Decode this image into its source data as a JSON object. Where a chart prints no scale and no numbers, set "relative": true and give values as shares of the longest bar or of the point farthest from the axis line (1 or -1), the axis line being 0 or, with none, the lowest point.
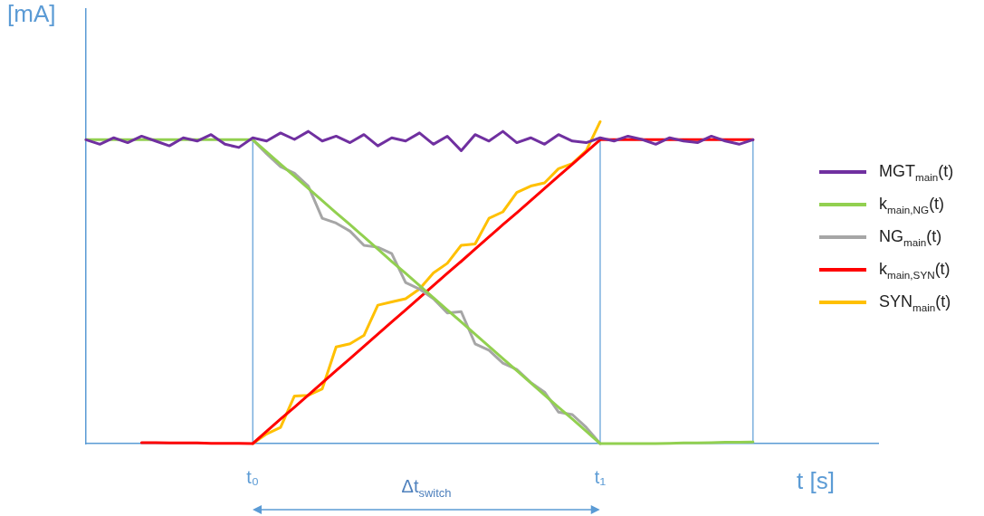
{
  "chart_data": {
    "type": "line",
    "relative": true,
    "xlabel": "t [s]",
    "ylabel": "[mA]",
    "categories": [
      null,
      null,
      null,
      null,
      null,
      null,
      null,
      null,
      null,
      null,
      null,
      null,
      "t₀",
      null,
      null,
      null,
      null,
      null,
      null,
      null,
      null,
      null,
      null,
      null,
      null,
      null,
      null,
      null,
      null,
      null,
      null,
      null,
      null,
      null,
      null,
      null,
      null,
      "t₁",
      null,
      null,
      null,
      null,
      null,
      null,
      null,
      null,
      null,
      null,
      null,
      null,
      null,
      null,
      null,
      null,
      null,
      null,
      null,
      null
    ],
    "legend": "right",
    "grid": "x",
    "marker": "none",
    "line_style": "solid",
    "annotations": [
      "Δt$_{switch}$"
    ],
    "series": [
      {
        "name": "MGT$_{main}$(t)",
        "color": "#7030a0",
        "values": [
          0.944,
          0.93,
          0.95,
          0.935,
          0.955,
          0.94,
          0.925,
          0.95,
          0.94,
          0.96,
          0.93,
          0.92,
          0.95,
          0.94,
          0.965,
          0.945,
          0.97,
          0.94,
          0.955,
          0.935,
          0.96,
          0.925,
          0.95,
          0.94,
          0.965,
          0.93,
          0.955,
          0.91,
          0.96,
          0.94,
          0.97,
          0.935,
          0.95,
          0.93,
          0.96,
          0.94,
          0.935,
          0.95,
          0.94,
          0.955,
          0.945,
          0.93,
          0.95,
          0.94,
          0.935,
          0.955,
          0.94,
          0.93,
          0.944,
          null,
          null,
          null,
          null,
          null,
          null,
          null,
          null,
          null
        ]
      },
      {
        "name": "k$_{main,NG}$(t)",
        "color": "#92d050",
        "values": [
          0.944,
          0.944,
          0.944,
          0.944,
          0.944,
          0.944,
          0.944,
          0.944,
          0.944,
          0.944,
          0.944,
          0.944,
          0.944,
          0.906,
          0.868,
          0.831,
          0.793,
          0.755,
          0.717,
          0.68,
          0.642,
          0.604,
          0.566,
          0.529,
          0.491,
          0.453,
          0.415,
          0.378,
          0.34,
          0.302,
          0.264,
          0.227,
          0.189,
          0.151,
          0.113,
          0.076,
          0.038,
          0,
          0,
          0,
          0,
          0,
          0.001,
          0.002,
          0.002,
          0.003,
          0.004,
          0.004,
          0.005,
          null,
          null,
          null,
          null,
          null,
          null,
          null,
          null,
          null
        ]
      },
      {
        "name": "NG$_{main}$(t)",
        "color": "#a6a6a6",
        "values": [
          null,
          null,
          null,
          null,
          null,
          null,
          null,
          null,
          null,
          null,
          null,
          null,
          0.944,
          0.9,
          0.86,
          0.84,
          0.8,
          0.7,
          0.685,
          0.66,
          0.616,
          0.61,
          0.59,
          0.5,
          0.48,
          0.45,
          0.406,
          0.41,
          0.31,
          0.29,
          0.25,
          0.23,
          0.19,
          0.16,
          0.098,
          0.09,
          0.05,
          0,
          null,
          null,
          null,
          null,
          null,
          null,
          null,
          null,
          null,
          null,
          null,
          null,
          null,
          null,
          null,
          null,
          null,
          null,
          null,
          null
        ]
      },
      {
        "name": "k$_{main,SYN}$(t)",
        "color": "#ff0000",
        "values": [
          null,
          null,
          null,
          null,
          0.003,
          0.003,
          0.002,
          0.002,
          0.002,
          0.001,
          0.001,
          0.001,
          0,
          0.038,
          0.076,
          0.113,
          0.151,
          0.189,
          0.227,
          0.264,
          0.302,
          0.34,
          0.378,
          0.415,
          0.453,
          0.491,
          0.529,
          0.566,
          0.604,
          0.642,
          0.68,
          0.717,
          0.755,
          0.793,
          0.831,
          0.868,
          0.906,
          0.944,
          0.944,
          0.944,
          0.944,
          0.944,
          0.944,
          0.944,
          0.944,
          0.944,
          0.944,
          0.944,
          0.944,
          null,
          null,
          null,
          null,
          null,
          null,
          null,
          null,
          null
        ]
      },
      {
        "name": "SYN$_{main}$(t)",
        "color": "#ffc000",
        "values": [
          null,
          null,
          null,
          null,
          null,
          null,
          null,
          null,
          null,
          null,
          null,
          null,
          0,
          0.03,
          0.05,
          0.148,
          0.15,
          0.17,
          0.3,
          0.31,
          0.336,
          0.43,
          0.44,
          0.45,
          0.48,
          0.53,
          0.56,
          0.616,
          0.62,
          0.7,
          0.72,
          0.78,
          0.8,
          0.81,
          0.854,
          0.87,
          0.91,
          1,
          null,
          null,
          null,
          null,
          null,
          null,
          null,
          null,
          null,
          null,
          null,
          null,
          null,
          null,
          null,
          null,
          null,
          null,
          null,
          null
        ]
      }
    ]
  }
}
